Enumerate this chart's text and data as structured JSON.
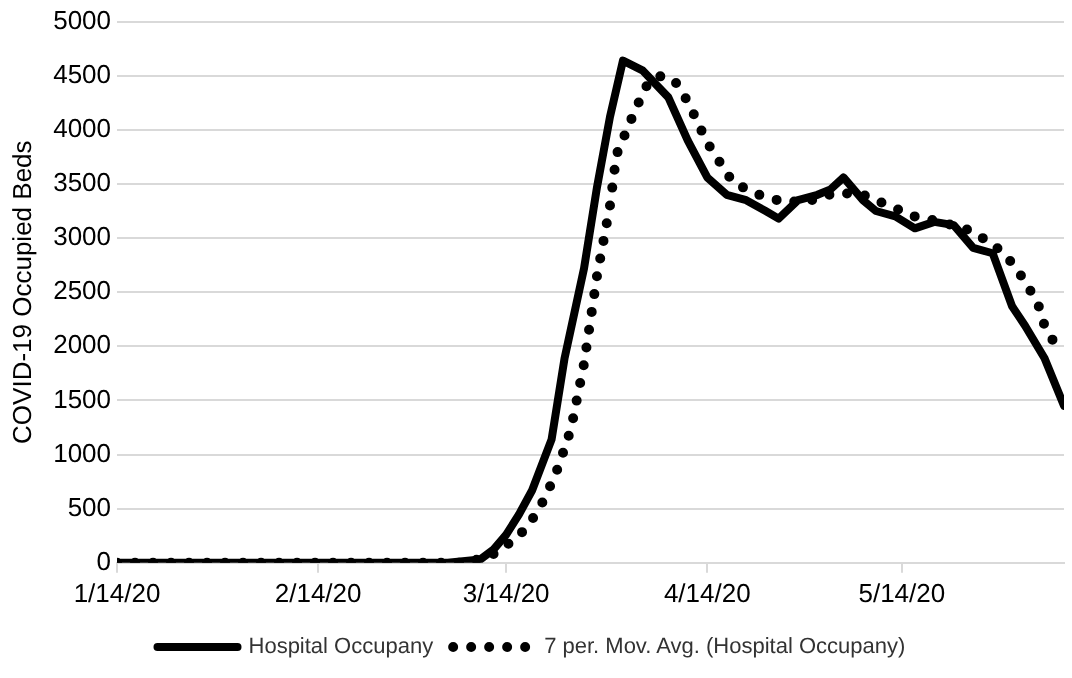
{
  "chart_data": {
    "type": "line",
    "ylabel": "COVID-19 Occupied Beds",
    "xlim": [
      "2020-01-14",
      "2020-06-08"
    ],
    "xticks": [
      {
        "value": "2020-01-14",
        "label": "1/14/20"
      },
      {
        "value": "2020-02-14",
        "label": "2/14/20"
      },
      {
        "value": "2020-03-14",
        "label": "3/14/20"
      },
      {
        "value": "2020-04-14",
        "label": "4/14/20"
      },
      {
        "value": "2020-05-14",
        "label": "5/14/20"
      }
    ],
    "ylim": [
      0,
      5000
    ],
    "yticks": [
      0,
      500,
      1000,
      1500,
      2000,
      2500,
      3000,
      3500,
      4000,
      4500,
      5000
    ],
    "grid": "y",
    "legend": "bottom",
    "marker": "none",
    "series": [
      {
        "name": "Hospital Occupany",
        "color": "#000000",
        "line_style": "solid",
        "x": [
          "2020-01-14",
          "2020-03-05",
          "2020-03-10",
          "2020-03-12",
          "2020-03-14",
          "2020-03-16",
          "2020-03-18",
          "2020-03-21",
          "2020-03-23",
          "2020-03-26",
          "2020-03-28",
          "2020-03-30",
          "2020-04-01",
          "2020-04-04",
          "2020-04-08",
          "2020-04-11",
          "2020-04-14",
          "2020-04-17",
          "2020-04-20",
          "2020-04-23",
          "2020-04-25",
          "2020-04-28",
          "2020-05-01",
          "2020-05-03",
          "2020-05-05",
          "2020-05-08",
          "2020-05-10",
          "2020-05-13",
          "2020-05-16",
          "2020-05-19",
          "2020-05-22",
          "2020-05-25",
          "2020-05-28",
          "2020-05-31",
          "2020-06-02",
          "2020-06-05",
          "2020-06-08"
        ],
        "values": [
          0,
          0,
          30,
          120,
          260,
          450,
          670,
          1140,
          1890,
          2720,
          3470,
          4120,
          4640,
          4550,
          4300,
          3900,
          3560,
          3400,
          3350,
          3250,
          3180,
          3350,
          3400,
          3450,
          3560,
          3350,
          3250,
          3200,
          3090,
          3150,
          3120,
          2910,
          2860,
          2370,
          2190,
          1890,
          1450
        ]
      },
      {
        "name": "7 per. Mov. Avg. (Hospital Occupany)",
        "color": "#000000",
        "line_style": "dotted",
        "x": [
          "2020-01-14",
          "2020-03-08",
          "2020-03-12",
          "2020-03-14",
          "2020-03-16",
          "2020-03-18",
          "2020-03-20",
          "2020-03-22",
          "2020-03-24",
          "2020-03-26",
          "2020-03-28",
          "2020-03-30",
          "2020-03-31",
          "2020-04-03",
          "2020-04-05",
          "2020-04-07",
          "2020-04-09",
          "2020-04-11",
          "2020-04-14",
          "2020-04-18",
          "2020-04-22",
          "2020-04-26",
          "2020-04-30",
          "2020-05-04",
          "2020-05-08",
          "2020-05-12",
          "2020-05-16",
          "2020-05-20",
          "2020-05-24",
          "2020-05-28",
          "2020-05-31",
          "2020-06-02",
          "2020-06-04",
          "2020-06-05",
          "2020-06-07"
        ],
        "values": [
          0,
          0,
          80,
          160,
          250,
          400,
          600,
          880,
          1240,
          1840,
          2650,
          3300,
          3770,
          4200,
          4450,
          4500,
          4450,
          4260,
          3880,
          3510,
          3400,
          3330,
          3350,
          3420,
          3400,
          3300,
          3200,
          3150,
          3080,
          2950,
          2770,
          2600,
          2390,
          2190,
          1980
        ]
      }
    ]
  }
}
